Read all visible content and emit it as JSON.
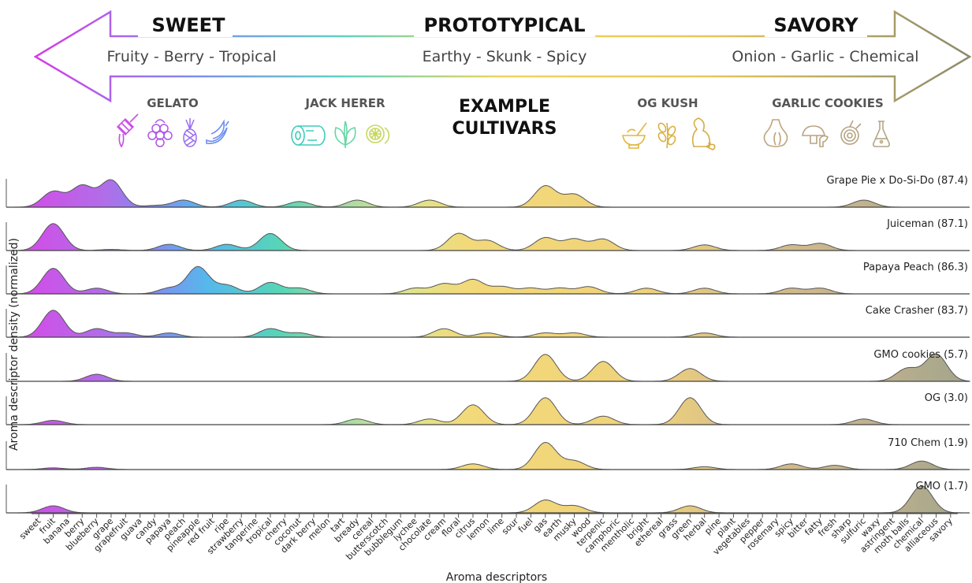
{
  "header": {
    "left_title": "SWEET",
    "center_title": "PROTOTYPICAL",
    "right_title": "SAVORY",
    "left_sub": "Fruity - Berry - Tropical",
    "center_sub": "Earthy - Skunk - Spicy",
    "right_sub": "Onion - Garlic - Chemical",
    "example_line1": "EXAMPLE",
    "example_line2": "CULTIVARS",
    "cultivars": [
      {
        "name": "GELATO",
        "icons": [
          "honey-dipper-icon",
          "raspberry-icon",
          "pineapple-icon",
          "banana-icon"
        ],
        "color": "#b04adf"
      },
      {
        "name": "JACK HERER",
        "icons": [
          "log-icon",
          "leaf-icon",
          "lemon-slice-icon"
        ],
        "color": "#3cc7a0"
      },
      {
        "name": "OG KUSH",
        "icons": [
          "mortar-pestle-icon",
          "herb-sprig-icon",
          "skunk-icon"
        ],
        "color": "#d8b23a"
      },
      {
        "name": "GARLIC COOKIES",
        "icons": [
          "garlic-icon",
          "mushroom-icon",
          "onion-icon",
          "flask-icon"
        ],
        "color": "#b8a27a"
      }
    ]
  },
  "chart_data": {
    "type": "ridgeline",
    "xlabel": "Aroma descriptors",
    "ylabel": "Aroma descriptor density (normalized)",
    "categories": [
      "sweet",
      "fruit",
      "banana",
      "berry",
      "blueberry",
      "grape",
      "grapefruit",
      "guava",
      "candy",
      "papaya",
      "peach",
      "pineapple",
      "red fruit",
      "ripe",
      "strawberry",
      "tangerine",
      "tropical",
      "cherry",
      "coconut",
      "dark berry",
      "melon",
      "tart",
      "bready",
      "cereal",
      "butterscotch",
      "bubblegum",
      "lychee",
      "chocolate",
      "cream",
      "floral",
      "citrus",
      "lemon",
      "lime",
      "sour",
      "fuel",
      "gas",
      "earth",
      "musky",
      "wood",
      "terpenic",
      "camphoric",
      "mentholic",
      "bright",
      "ethereal",
      "grass",
      "green",
      "herbal",
      "pine",
      "plant",
      "vegetables",
      "pepper",
      "rosemary",
      "spicy",
      "bitter",
      "fatty",
      "fresh",
      "sharp",
      "sulfuric",
      "waxy",
      "astringent",
      "moth balls",
      "chemical",
      "alliaceous",
      "savory"
    ],
    "series": [
      {
        "name": "Grape Pie x Do-Si-Do (87.4)",
        "peaks": [
          [
            1,
            0.55
          ],
          [
            3,
            0.75
          ],
          [
            5,
            0.95
          ],
          [
            8,
            0.06
          ],
          [
            10,
            0.25
          ],
          [
            14,
            0.25
          ],
          [
            18,
            0.2
          ],
          [
            22,
            0.25
          ],
          [
            27,
            0.25
          ],
          [
            35,
            0.75
          ],
          [
            37,
            0.45
          ],
          [
            57,
            0.25
          ]
        ]
      },
      {
        "name": "Juiceman (87.1)",
        "peaks": [
          [
            1,
            0.95
          ],
          [
            5,
            0.04
          ],
          [
            9,
            0.22
          ],
          [
            13,
            0.22
          ],
          [
            16,
            0.6
          ],
          [
            29,
            0.6
          ],
          [
            31,
            0.35
          ],
          [
            35,
            0.45
          ],
          [
            37,
            0.4
          ],
          [
            39,
            0.4
          ],
          [
            46,
            0.2
          ],
          [
            52,
            0.2
          ],
          [
            54,
            0.25
          ]
        ]
      },
      {
        "name": "Papaya Peach (86.3)",
        "peaks": [
          [
            1,
            0.9
          ],
          [
            4,
            0.2
          ],
          [
            9,
            0.2
          ],
          [
            11,
            0.95
          ],
          [
            13,
            0.3
          ],
          [
            16,
            0.4
          ],
          [
            18,
            0.2
          ],
          [
            26,
            0.2
          ],
          [
            28,
            0.35
          ],
          [
            30,
            0.5
          ],
          [
            32,
            0.25
          ],
          [
            34,
            0.2
          ],
          [
            36,
            0.2
          ],
          [
            38,
            0.25
          ],
          [
            42,
            0.2
          ],
          [
            46,
            0.2
          ],
          [
            52,
            0.2
          ],
          [
            54,
            0.2
          ]
        ]
      },
      {
        "name": "Cake Crasher (83.7)",
        "peaks": [
          [
            1,
            0.95
          ],
          [
            4,
            0.3
          ],
          [
            6,
            0.15
          ],
          [
            9,
            0.15
          ],
          [
            16,
            0.3
          ],
          [
            18,
            0.15
          ],
          [
            28,
            0.3
          ],
          [
            31,
            0.15
          ],
          [
            35,
            0.15
          ],
          [
            37,
            0.15
          ],
          [
            46,
            0.15
          ]
        ]
      },
      {
        "name": "GMO cookies (5.7)",
        "peaks": [
          [
            4,
            0.25
          ],
          [
            35,
            0.95
          ],
          [
            39,
            0.7
          ],
          [
            45,
            0.45
          ],
          [
            60,
            0.45
          ],
          [
            62,
            0.95
          ]
        ]
      },
      {
        "name": "OG (3.0)",
        "peaks": [
          [
            1,
            0.15
          ],
          [
            22,
            0.2
          ],
          [
            27,
            0.2
          ],
          [
            30,
            0.7
          ],
          [
            35,
            0.95
          ],
          [
            39,
            0.3
          ],
          [
            45,
            0.95
          ],
          [
            57,
            0.2
          ]
        ]
      },
      {
        "name": "710 Chem (1.9)",
        "peaks": [
          [
            1,
            0.06
          ],
          [
            4,
            0.08
          ],
          [
            30,
            0.2
          ],
          [
            35,
            0.95
          ],
          [
            37,
            0.3
          ],
          [
            46,
            0.1
          ],
          [
            52,
            0.2
          ],
          [
            55,
            0.15
          ],
          [
            61,
            0.3
          ]
        ]
      },
      {
        "name": "GMO (1.7)",
        "peaks": [
          [
            1,
            0.25
          ],
          [
            35,
            0.45
          ],
          [
            37,
            0.25
          ],
          [
            45,
            0.25
          ],
          [
            61,
            0.95
          ]
        ]
      }
    ]
  },
  "colors": {
    "magenta": "#d04fe8",
    "violet": "#8b7ff0",
    "sky": "#56b8ec",
    "teal": "#57d6b5",
    "lime": "#d4e48a",
    "yellow": "#f2d97a",
    "tan": "#c9b482",
    "olive": "#a4a48c"
  }
}
